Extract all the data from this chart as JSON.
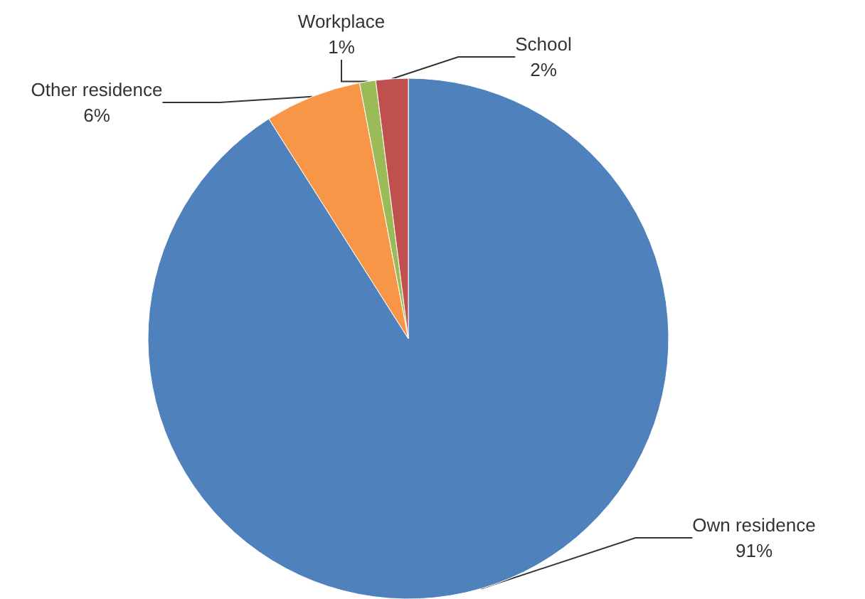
{
  "chart_data": {
    "type": "pie",
    "categories": [
      "Own residence",
      "Other residence",
      "Workplace",
      "School"
    ],
    "values": [
      91,
      6,
      1,
      2
    ],
    "value_labels": [
      "91%",
      "6%",
      "1%",
      "2%"
    ],
    "colors": [
      "#4f81bd",
      "#f79646",
      "#9bbb59",
      "#c0504d"
    ],
    "legend": false
  }
}
